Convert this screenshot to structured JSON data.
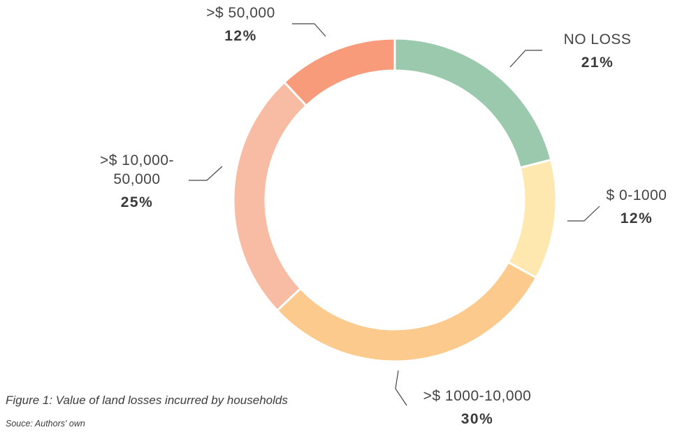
{
  "chart_data": {
    "type": "pie",
    "variant": "donut",
    "title": "",
    "slices": [
      {
        "label": "NO LOSS",
        "pct_label": "21%",
        "value": 21,
        "color": "#9bc9ae"
      },
      {
        "label": "$ 0-1000",
        "pct_label": "12%",
        "value": 12,
        "color": "#ffe8b0"
      },
      {
        "label": ">$ 1000-10,000",
        "pct_label": "30%",
        "value": 30,
        "color": "#fcca8c"
      },
      {
        "label": ">$ 10,000-\n50,000",
        "pct_label": "25%",
        "value": 25,
        "color": "#f8bba3"
      },
      {
        "label": ">$ 50,000",
        "pct_label": "12%",
        "value": 12,
        "color": "#f79b7b"
      }
    ]
  },
  "caption": "Figure 1: Value of land losses incurred by households",
  "source": "Souce: Authors' own"
}
